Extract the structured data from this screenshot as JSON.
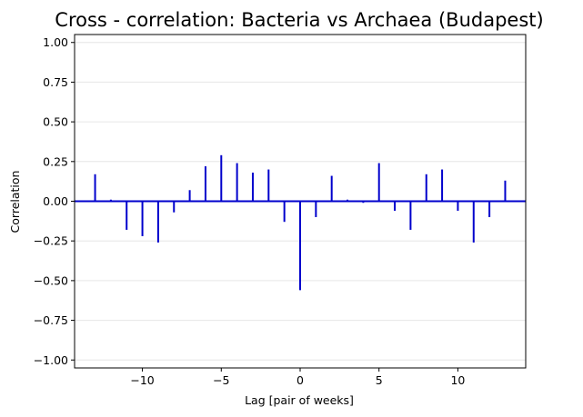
{
  "chart_data": {
    "type": "bar",
    "title": "Cross - correlation: Bacteria vs Archaea (Budapest)",
    "xlabel": "Lag [pair of weeks]",
    "ylabel": "Correlation",
    "xlim": [
      -14.3,
      14.3
    ],
    "ylim": [
      -1.05,
      1.05
    ],
    "xticks": [
      -10,
      -5,
      0,
      5,
      10
    ],
    "xtick_labels": [
      "−10",
      "−5",
      "0",
      "5",
      "10"
    ],
    "yticks": [
      -1.0,
      -0.75,
      -0.5,
      -0.25,
      0.0,
      0.25,
      0.5,
      0.75,
      1.0
    ],
    "ytick_labels": [
      "−1.00",
      "−0.75",
      "−0.50",
      "−0.25",
      "0.00",
      "0.25",
      "0.50",
      "0.75",
      "1.00"
    ],
    "grid": true,
    "colors": {
      "stems": "#0000cc",
      "zero_line": "#0000cc",
      "grid": "#e6e6e6"
    },
    "x": [
      -13,
      -12,
      -11,
      -10,
      -9,
      -8,
      -7,
      -6,
      -5,
      -4,
      -3,
      -2,
      -1,
      0,
      1,
      2,
      3,
      4,
      5,
      6,
      7,
      8,
      9,
      10,
      11,
      12,
      13
    ],
    "values": [
      0.17,
      0.01,
      -0.18,
      -0.22,
      -0.26,
      -0.07,
      0.07,
      0.22,
      0.29,
      0.24,
      0.18,
      0.2,
      -0.13,
      -0.56,
      -0.1,
      0.16,
      0.01,
      -0.01,
      0.24,
      -0.06,
      -0.18,
      0.17,
      0.2,
      -0.06,
      -0.26,
      -0.1,
      0.13
    ]
  }
}
